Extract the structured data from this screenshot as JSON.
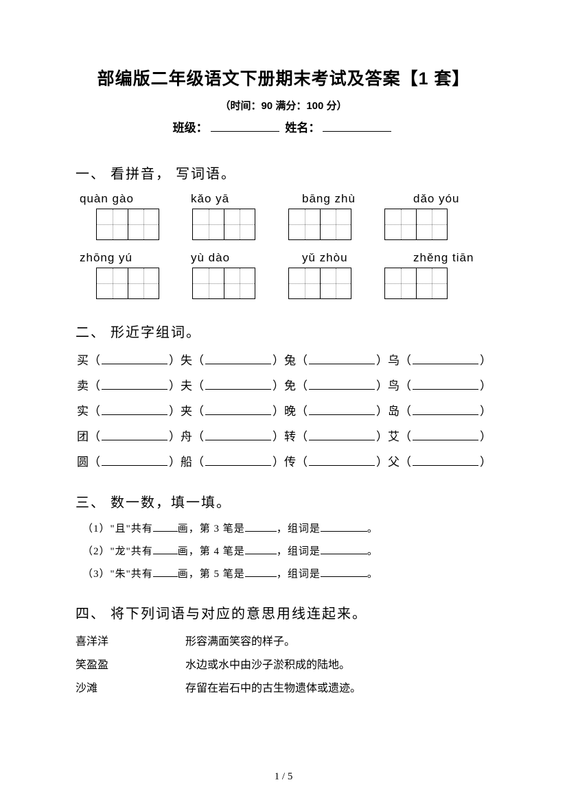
{
  "header": {
    "title": "部编版二年级语文下册期末考试及答案【1 套】",
    "subtitle": "（时间：90   满分：100 分）",
    "class_label": "班级：",
    "name_label": "姓名："
  },
  "sections": {
    "s1": {
      "head": "一、  看拼音，  写词语。",
      "row1": [
        "quàn   gào",
        "kǎo   yā",
        "bāng   zhù",
        "dǎo   yóu"
      ],
      "row2": [
        "zhōng yú",
        "yù   dào",
        "yǔ   zhòu",
        "zhěng   tiān"
      ]
    },
    "s2": {
      "head": "二、  形近字组词。",
      "rows": [
        [
          "买",
          "失",
          "兔",
          "乌"
        ],
        [
          "卖",
          "夫",
          "免",
          "鸟"
        ],
        [
          "实",
          "夹",
          "晚",
          "岛"
        ],
        [
          "团",
          "舟",
          "转",
          "艾"
        ],
        [
          "圆",
          "船",
          "传",
          "父"
        ]
      ]
    },
    "s3": {
      "head": "三、  数一数，填一填。",
      "lines": [
        {
          "idx": "（1）",
          "char": "\"且\"",
          "strokeLabel": "第 3 笔是"
        },
        {
          "idx": "（2）",
          "char": "\"龙\"",
          "strokeLabel": "第 4 笔是"
        },
        {
          "idx": "（3）",
          "char": "\"朱\"",
          "strokeLabel": "第 5 笔是"
        }
      ],
      "txt_gongyou": "共有",
      "txt_hua": "画，",
      "txt_zuci": "，组词是",
      "txt_period": "。"
    },
    "s4": {
      "head": "四、  将下列词语与对应的意思用线连起来。",
      "pairs": [
        {
          "l": "喜洋洋",
          "r": "形容满面笑容的样子。"
        },
        {
          "l": "笑盈盈",
          "r": "水边或水中由沙子淤积成的陆地。"
        },
        {
          "l": "沙滩",
          "r": "存留在岩石中的古生物遗体或遗迹。"
        }
      ]
    }
  },
  "pageNum": "1  /  5"
}
